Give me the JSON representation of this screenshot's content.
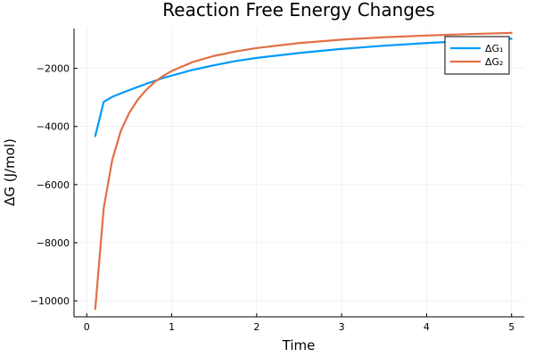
{
  "chart_data": {
    "type": "line",
    "title": "Reaction Free Energy Changes",
    "xlabel": "Time",
    "ylabel": "ΔG (J/mol)",
    "xlim": [
      -0.15,
      5.15
    ],
    "ylim": [
      -10550,
      -630
    ],
    "xticks": [
      0,
      1,
      2,
      3,
      4,
      5
    ],
    "xtick_labels": [
      "0",
      "1",
      "2",
      "3",
      "4",
      "5"
    ],
    "yticks": [
      -10000,
      -8000,
      -6000,
      -4000,
      -2000
    ],
    "ytick_labels": [
      "−10000",
      "−8000",
      "−6000",
      "−4000",
      "−2000"
    ],
    "grid": true,
    "legend_position": "top-right",
    "series": [
      {
        "name": "ΔG₁",
        "color": "#009af9",
        "x": [
          0.1,
          0.2,
          0.3,
          0.4,
          0.5,
          0.6,
          0.7,
          0.8,
          0.9,
          1.0,
          1.25,
          1.5,
          1.75,
          2.0,
          2.5,
          3.0,
          3.5,
          4.0,
          4.5,
          5.0
        ],
        "y": [
          -4330,
          -3150,
          -2980,
          -2860,
          -2750,
          -2640,
          -2530,
          -2430,
          -2330,
          -2250,
          -2050,
          -1890,
          -1750,
          -1640,
          -1470,
          -1330,
          -1220,
          -1130,
          -1050,
          -980
        ]
      },
      {
        "name": "ΔG₂",
        "color": "#e26f46",
        "x": [
          0.1,
          0.2,
          0.3,
          0.4,
          0.5,
          0.6,
          0.7,
          0.8,
          0.9,
          1.0,
          1.25,
          1.5,
          1.75,
          2.0,
          2.5,
          3.0,
          3.5,
          4.0,
          4.5,
          5.0
        ],
        "y": [
          -10280,
          -6800,
          -5150,
          -4160,
          -3530,
          -3080,
          -2740,
          -2470,
          -2260,
          -2090,
          -1780,
          -1570,
          -1420,
          -1300,
          -1130,
          -1010,
          -930,
          -870,
          -820,
          -780
        ]
      }
    ]
  }
}
